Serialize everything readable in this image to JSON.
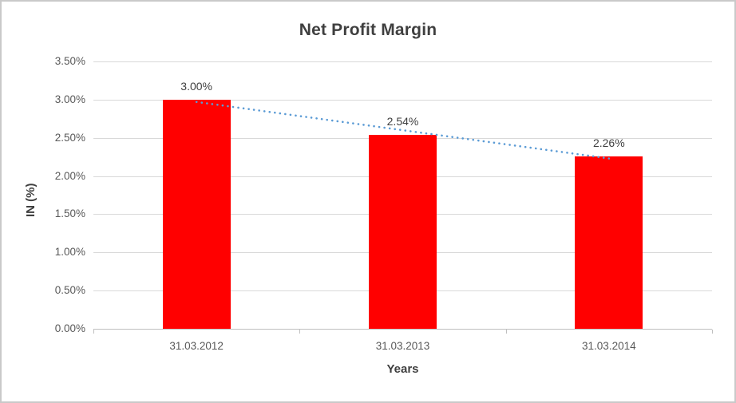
{
  "chart_data": {
    "type": "bar",
    "title": "Net Profit Margin",
    "categories": [
      "31.03.2012",
      "31.03.2013",
      "31.03.2014"
    ],
    "values": [
      3.0,
      2.54,
      2.26
    ],
    "data_labels": [
      "3.00%",
      "2.54%",
      "2.26%"
    ],
    "xlabel": "Years",
    "ylabel": "IN (%)",
    "ylim": [
      0,
      3.5
    ],
    "ytick_step": 0.5,
    "ytick_labels": [
      "0.00%",
      "0.50%",
      "1.00%",
      "1.50%",
      "2.00%",
      "2.50%",
      "3.00%",
      "3.50%"
    ],
    "grid": true,
    "legend": "none",
    "colors": {
      "bar": "#FF0000",
      "gridline": "#D9D9D9",
      "axis_line": "#BFBFBF",
      "tick_label": "#595959",
      "title": "#3F3F3F",
      "data_label": "#3F3F3F",
      "trendline": "#5B9BD5"
    },
    "trendline": {
      "type": "linear",
      "style": "dotted",
      "start_value": 2.97,
      "end_value": 2.23
    }
  }
}
